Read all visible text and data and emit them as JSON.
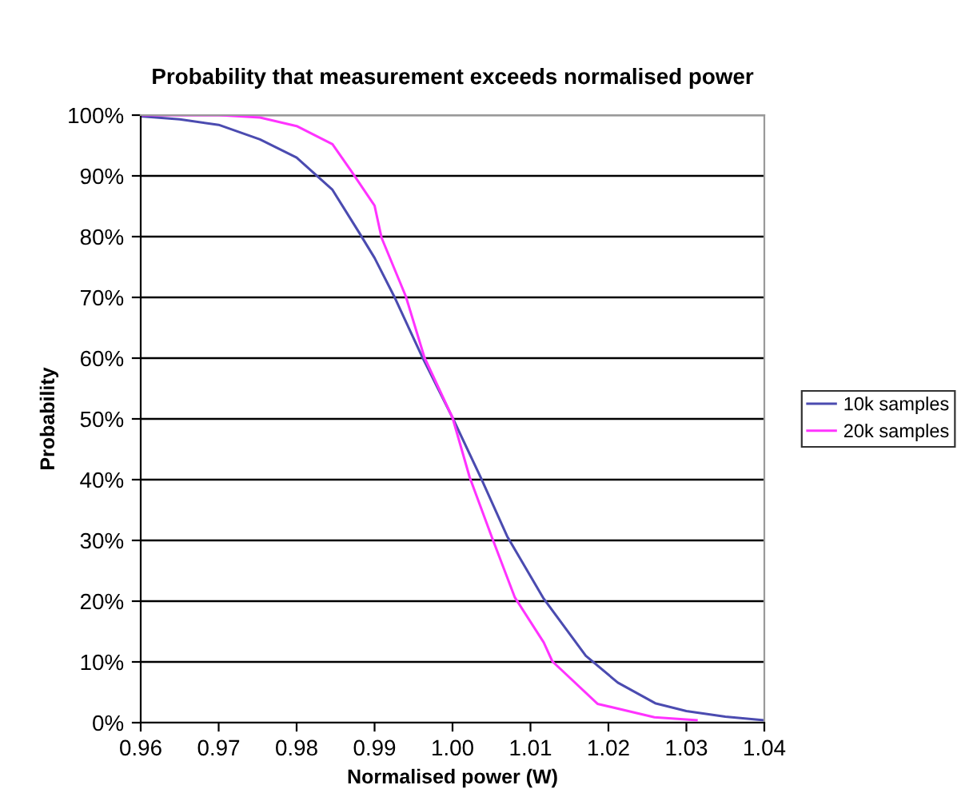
{
  "chart_data": {
    "type": "line",
    "title": "Probability that measurement exceeds normalised power",
    "xlabel": "Normalised power (W)",
    "ylabel": "Probability",
    "xlim": [
      0.96,
      1.04
    ],
    "xticks": [
      0.96,
      0.97,
      0.98,
      0.99,
      {
        "value": 1.0,
        "label": "1.00"
      },
      1.01,
      1.02,
      1.03,
      1.04
    ],
    "ylim": [
      0,
      100
    ],
    "yticks": [
      {
        "value": 0,
        "label": "0%"
      },
      {
        "value": 10,
        "label": "10%"
      },
      {
        "value": 20,
        "label": "20%"
      },
      {
        "value": 30,
        "label": "30%"
      },
      {
        "value": 40,
        "label": "40%"
      },
      {
        "value": 50,
        "label": "50%"
      },
      {
        "value": 60,
        "label": "60%"
      },
      {
        "value": 70,
        "label": "70%"
      },
      {
        "value": 80,
        "label": "80%"
      },
      {
        "value": 90,
        "label": "90%"
      },
      {
        "value": 100,
        "label": "100%"
      }
    ],
    "grid": "y",
    "legend": "right",
    "marker": "none",
    "line_style": "solid",
    "series": [
      {
        "name": "10k samples",
        "color": "#4b4bb0",
        "x": [
          0.96,
          0.965,
          0.97,
          0.9753,
          0.98,
          0.9846,
          0.988,
          0.99,
          0.9925,
          0.996,
          1.0,
          1.0036,
          1.007,
          1.0117,
          1.0171,
          1.0212,
          1.026,
          1.03,
          1.035,
          1.04
        ],
        "values": [
          99.8,
          99.3,
          98.4,
          96,
          93,
          87.7,
          80.7,
          76.5,
          70.2,
          60.5,
          50.2,
          40.4,
          30.7,
          20.4,
          11,
          6.6,
          3.2,
          1.9,
          1.0,
          0.4
        ]
      },
      {
        "name": "20k samples",
        "color": "#ff33ff",
        "x": [
          0.96,
          0.97,
          0.9753,
          0.98,
          0.9846,
          0.987,
          0.99,
          0.9909,
          0.994,
          0.9964,
          1.0,
          1.0022,
          1.005,
          1.008,
          1.0117,
          1.0128,
          1.0186,
          1.0259,
          1.0313
        ],
        "values": [
          100,
          100,
          99.6,
          98.2,
          95.2,
          90.8,
          85.1,
          79.8,
          70.2,
          60.1,
          50.2,
          40.4,
          30.7,
          20.6,
          13.2,
          10.1,
          3.1,
          0.9,
          0.4
        ]
      }
    ]
  }
}
